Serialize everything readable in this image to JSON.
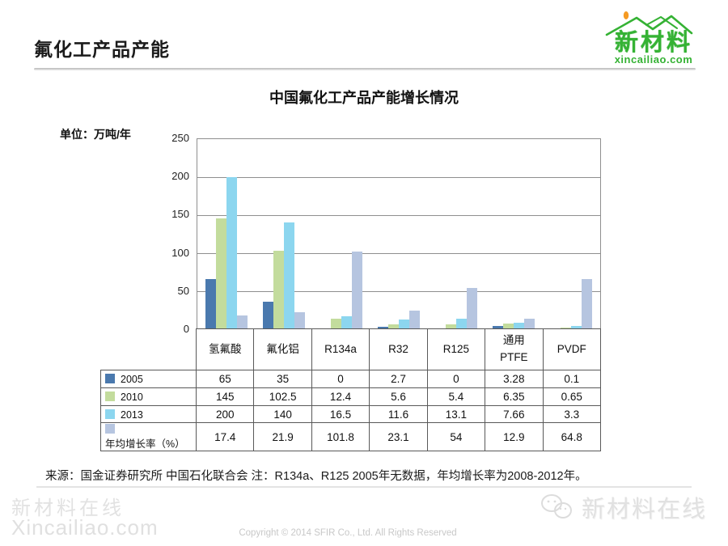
{
  "header": {
    "title": "氟化工产品产能"
  },
  "logo": {
    "brand": "新材料",
    "domain": "xincailiao.com",
    "green": "#35b234",
    "orange": "#f59a23"
  },
  "chart": {
    "title": "中国氟化工产品产能增长情况",
    "unit_label": "单位：万吨/年"
  },
  "chart_data": {
    "type": "bar",
    "title": "中国氟化工产品产能增长情况",
    "unit": "万吨/年",
    "categories": [
      "氢氟酸",
      "氟化铝",
      "R134a",
      "R32",
      "R125",
      "通用PTFE",
      "PVDF"
    ],
    "category_display": [
      "氢氟酸",
      "氟化铝",
      "R134a",
      "R32",
      "R125",
      "通用\nPTFE",
      "PVDF"
    ],
    "series": [
      {
        "name": "2005",
        "color": "#4a79ae",
        "values": [
          65,
          35,
          0,
          2.7,
          0,
          3.28,
          0.1
        ]
      },
      {
        "name": "2010",
        "color": "#c3dc9d",
        "values": [
          145,
          102.5,
          12.4,
          5.6,
          5.4,
          6.35,
          0.65
        ]
      },
      {
        "name": "2013",
        "color": "#8cd6ef",
        "values": [
          200,
          140,
          16.5,
          11.6,
          13.1,
          7.66,
          3.3
        ]
      },
      {
        "name": "年均增长率（%）",
        "color": "#b6c5e0",
        "values": [
          17.4,
          21.9,
          101.8,
          23.1,
          54,
          12.9,
          64.8
        ]
      }
    ],
    "ylim": [
      0,
      250
    ],
    "y_ticks": [
      250,
      200,
      150,
      100,
      50,
      0
    ],
    "grid": true,
    "legend_position": "table-left"
  },
  "footer": {
    "source_note": "来源：国金证券研究所 中国石化联合会 注：R134a、R125 2005年无数据，年均增长率为2008-2012年。",
    "watermark_cn": "新材料在线",
    "watermark_en": "Xincailiao.com",
    "copyright": "Copyright © 2014 SFIR Co., Ltd. All Rights Reserved",
    "watermark_right": "新材料在线"
  }
}
